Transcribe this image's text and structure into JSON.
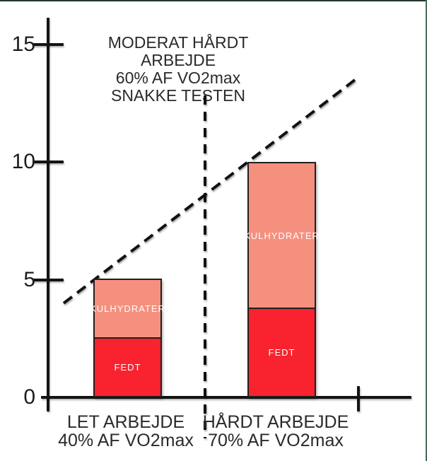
{
  "chart_data": {
    "type": "bar",
    "stacked": true,
    "categories": [
      "LET ARBEJDE 40% AF VO2max",
      "HÅRDT ARBEJDE 70% AF VO2max"
    ],
    "category_lines": [
      [
        "LET ARBEJDE",
        "40% AF VO2max"
      ],
      [
        "HÅRDT ARBEJDE",
        "70% AF VO2max"
      ]
    ],
    "series": [
      {
        "name": "FEDT",
        "color": "#f8232f",
        "values": [
          2.5,
          3.75
        ]
      },
      {
        "name": "KULHYDRATER",
        "color": "#f5907e",
        "values": [
          2.55,
          6.25
        ]
      }
    ],
    "bar_totals": [
      5.05,
      10
    ],
    "ylim": [
      0,
      16.5
    ],
    "yticks": [
      0,
      5,
      10,
      15
    ],
    "ytick_labels": [
      "0",
      "5",
      "10",
      "15"
    ],
    "xlabel": "",
    "ylabel": "",
    "grid": false,
    "legend_position": "none (series labels printed inside bar segments)",
    "annotation": {
      "lines": [
        "MODERAT HÅRDT ARBEJDE",
        "60% AF VO2max",
        "SNAKKE TESTEN"
      ],
      "position": "top-center"
    },
    "trend_line": {
      "style": "dashed",
      "color": "#111111",
      "description": "straight dashed line rising from lower-left to upper-right",
      "from_value": 4.0,
      "to_value": 13.6
    },
    "separator_line": {
      "style": "dashed",
      "color": "#111111",
      "orientation": "vertical",
      "description": "vertical dashed line between the two bars, crossing the x-axis"
    }
  },
  "frame": {
    "top_border_color": "#24382b",
    "right_border_color": "#4a6a55"
  }
}
